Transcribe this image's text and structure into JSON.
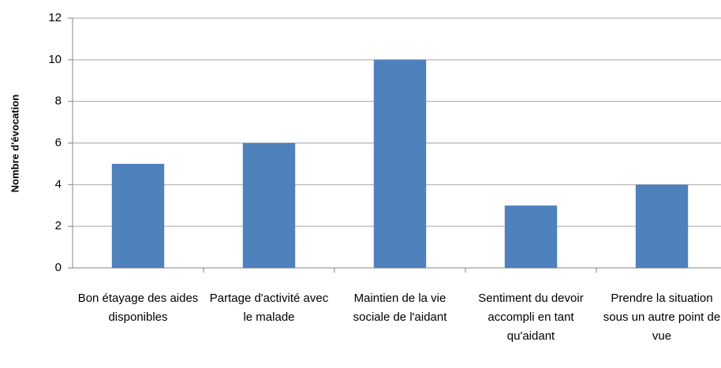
{
  "chart_data": {
    "type": "bar",
    "y_label": "Nombre d'évocation",
    "categories": [
      "Bon étayage des aides disponibles",
      "Partage d'activité avec le malade",
      "Maintien de la vie sociale de l'aidant",
      "Sentiment du devoir accompli en tant qu'aidant",
      "Prendre la situation sous un autre point de vue"
    ],
    "values": [
      5,
      6,
      10,
      3,
      4
    ],
    "color": "#4f81bd",
    "ylim": [
      0,
      12
    ],
    "yticks": [
      0,
      2,
      4,
      6,
      8,
      10,
      12
    ],
    "grid": true
  }
}
